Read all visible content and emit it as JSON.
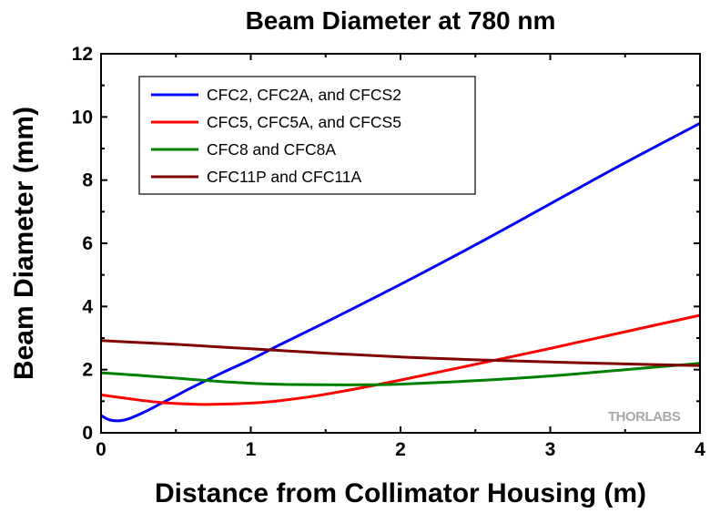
{
  "chart_data": {
    "type": "line",
    "title": "Beam Diameter at 780 nm",
    "xlabel": "Distance from Collimator Housing (m)",
    "ylabel": "Beam Diameter (mm)",
    "xlim": [
      0,
      4
    ],
    "ylim": [
      0,
      12
    ],
    "xticks": [
      0,
      1,
      2,
      3,
      4
    ],
    "yticks": [
      0,
      2,
      4,
      6,
      8,
      10,
      12
    ],
    "grid": false,
    "legend_position": "top-left",
    "series": [
      {
        "name": "CFC2, CFC2A, and CFCS2",
        "color": "#0000ff",
        "x": [
          0,
          0.05,
          0.1,
          0.15,
          0.2,
          0.3,
          0.4,
          0.5,
          0.6,
          0.8,
          1.0,
          1.2,
          1.5,
          2.0,
          2.5,
          3.0,
          3.5,
          4.0
        ],
        "y": [
          0.55,
          0.42,
          0.38,
          0.4,
          0.47,
          0.68,
          0.93,
          1.17,
          1.42,
          1.88,
          2.32,
          2.8,
          3.5,
          4.7,
          5.95,
          7.25,
          8.55,
          9.8
        ]
      },
      {
        "name": "CFC5, CFC5A, and CFCS5",
        "color": "#ff0000",
        "x": [
          0,
          0.2,
          0.4,
          0.6,
          0.75,
          1.0,
          1.2,
          1.5,
          2.0,
          2.5,
          3.0,
          3.5,
          4.0
        ],
        "y": [
          1.2,
          1.07,
          0.96,
          0.91,
          0.9,
          0.94,
          1.02,
          1.22,
          1.67,
          2.17,
          2.67,
          3.2,
          3.72
        ]
      },
      {
        "name": "CFC8 and CFC8A",
        "color": "#008000",
        "x": [
          0,
          0.25,
          0.5,
          0.75,
          1.0,
          1.25,
          1.5,
          1.75,
          2.0,
          2.5,
          3.0,
          3.5,
          4.0
        ],
        "y": [
          1.9,
          1.82,
          1.73,
          1.64,
          1.57,
          1.53,
          1.52,
          1.52,
          1.54,
          1.65,
          1.8,
          2.0,
          2.2
        ]
      },
      {
        "name": "CFC11P and CFC11A",
        "color": "#800000",
        "x": [
          0,
          0.5,
          1.0,
          1.5,
          2.0,
          2.5,
          3.0,
          3.5,
          4.0
        ],
        "y": [
          2.92,
          2.8,
          2.66,
          2.52,
          2.4,
          2.31,
          2.24,
          2.18,
          2.13
        ]
      }
    ]
  },
  "watermark": "THORLABS"
}
